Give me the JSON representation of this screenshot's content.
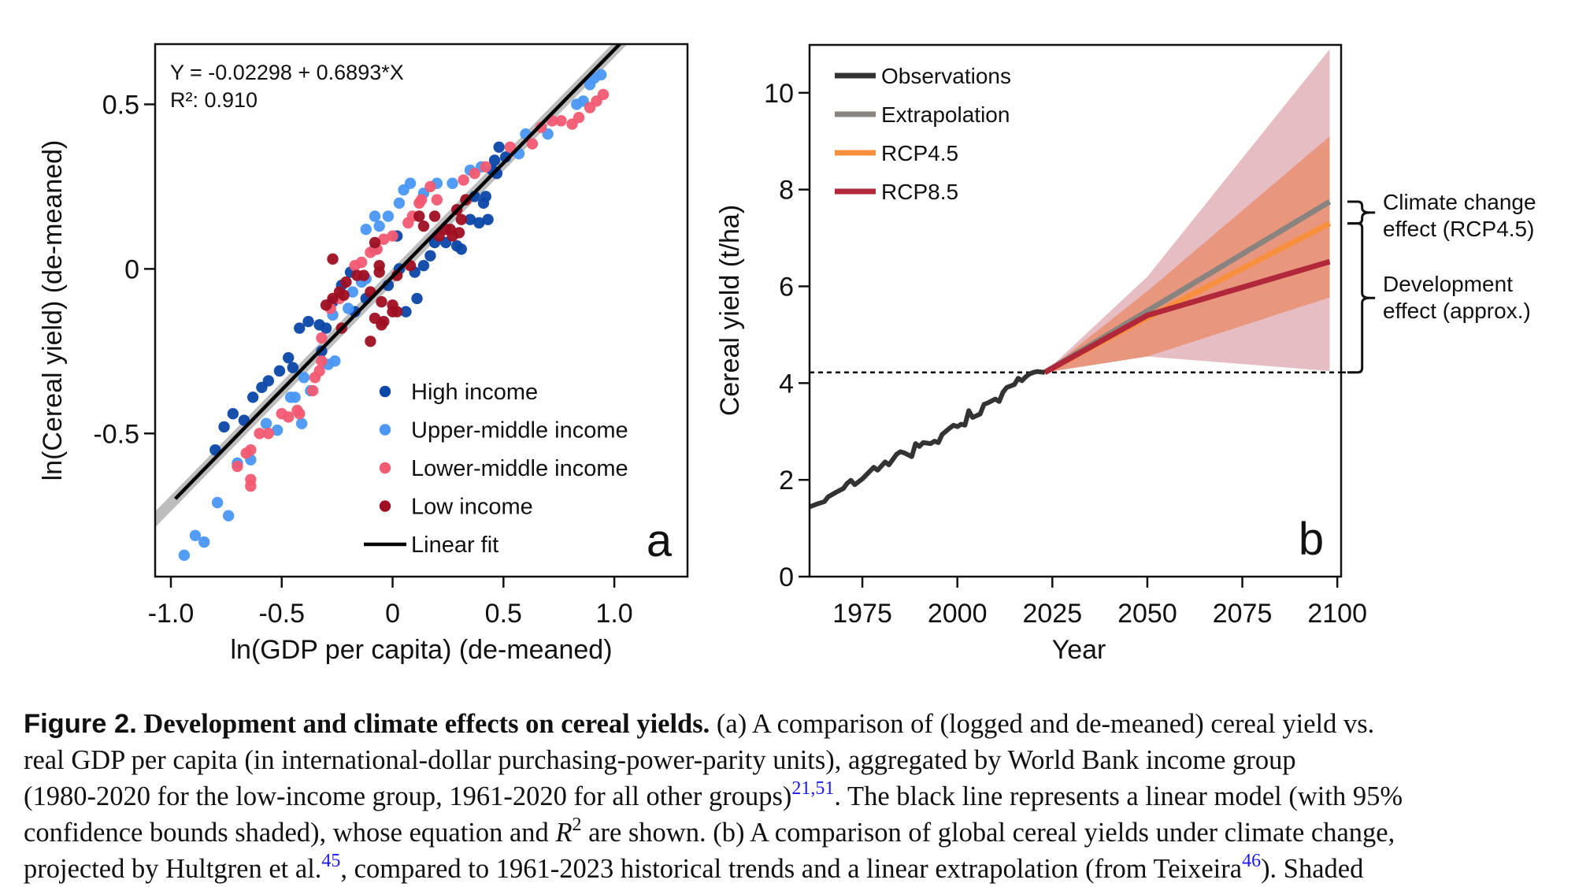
{
  "chart_data": [
    {
      "panel_label": "a",
      "type": "scatter",
      "xlabel": "ln(GDP per capita) (de-meaned)",
      "ylabel": "ln(Cereal yield) (de-meaned)",
      "xlim": [
        -1.071,
        1.33
      ],
      "ylim": [
        -0.935,
        0.683
      ],
      "xticks": [
        -1.0,
        -0.5,
        0,
        0.5,
        1.0
      ],
      "xtick_labels": [
        "-1.0",
        "-0.5",
        "0",
        "0.5",
        "1.0"
      ],
      "yticks": [
        -0.5,
        0,
        0.5
      ],
      "ytick_labels": [
        "-0.5",
        "0",
        "0.5"
      ],
      "grid": false,
      "annotation": {
        "equation": "Y = -0.02298 + 0.6893*X",
        "r2": "R²: 0.910"
      },
      "fit": {
        "name": "Linear fit",
        "intercept": -0.02298,
        "slope": 0.6893,
        "x_range": [
          -1.0,
          1.0
        ],
        "ci_half_width": 0.015,
        "color": "#000000"
      },
      "legend_position": "bottom-right",
      "series": [
        {
          "name": "High income",
          "color": "#0b47a8",
          "points": [
            [
              -0.8,
              -0.55
            ],
            [
              -0.76,
              -0.48
            ],
            [
              -0.72,
              -0.44
            ],
            [
              -0.67,
              -0.46
            ],
            [
              -0.63,
              -0.39
            ],
            [
              -0.59,
              -0.36
            ],
            [
              -0.56,
              -0.34
            ],
            [
              -0.51,
              -0.31
            ],
            [
              -0.47,
              -0.27
            ],
            [
              -0.45,
              -0.3
            ],
            [
              -0.42,
              -0.18
            ],
            [
              -0.38,
              -0.16
            ],
            [
              -0.33,
              -0.17
            ],
            [
              -0.32,
              -0.25
            ],
            [
              -0.3,
              -0.18
            ],
            [
              -0.27,
              -0.1
            ],
            [
              -0.23,
              -0.05
            ],
            [
              -0.19,
              -0.01
            ],
            [
              -0.17,
              -0.13
            ],
            [
              -0.12,
              -0.09
            ],
            [
              -0.08,
              0.06
            ],
            [
              -0.02,
              -0.05
            ],
            [
              0.02,
              0.1
            ],
            [
              0.03,
              0.0
            ],
            [
              0.06,
              -0.13
            ],
            [
              0.1,
              -0.01
            ],
            [
              0.11,
              -0.09
            ],
            [
              0.14,
              0.01
            ],
            [
              0.17,
              0.04
            ],
            [
              0.19,
              0.08
            ],
            [
              0.24,
              0.08
            ],
            [
              0.29,
              0.07
            ],
            [
              0.31,
              0.06
            ],
            [
              0.35,
              0.15
            ],
            [
              0.37,
              0.22
            ],
            [
              0.41,
              0.2
            ],
            [
              0.43,
              0.15
            ],
            [
              0.42,
              0.22
            ],
            [
              0.39,
              0.14
            ],
            [
              0.45,
              0.3
            ],
            [
              0.47,
              0.29
            ],
            [
              0.48,
              0.37
            ],
            [
              0.51,
              0.34
            ],
            [
              0.46,
              0.33
            ]
          ]
        },
        {
          "name": "Upper-middle income",
          "color": "#4a97f5",
          "points": [
            [
              -0.94,
              -0.87
            ],
            [
              -0.89,
              -0.81
            ],
            [
              -0.85,
              -0.83
            ],
            [
              -0.79,
              -0.71
            ],
            [
              -0.74,
              -0.75
            ],
            [
              -0.7,
              -0.59
            ],
            [
              -0.64,
              -0.58
            ],
            [
              -0.57,
              -0.47
            ],
            [
              -0.52,
              -0.49
            ],
            [
              -0.46,
              -0.39
            ],
            [
              -0.44,
              -0.39
            ],
            [
              -0.41,
              -0.47
            ],
            [
              -0.4,
              -0.33
            ],
            [
              -0.37,
              -0.37
            ],
            [
              -0.29,
              -0.29
            ],
            [
              -0.26,
              -0.28
            ],
            [
              -0.27,
              -0.14
            ],
            [
              -0.2,
              -0.12
            ],
            [
              -0.18,
              -0.07
            ],
            [
              -0.14,
              -0.04
            ],
            [
              -0.12,
              -0.03
            ],
            [
              -0.12,
              0.12
            ],
            [
              -0.08,
              0.16
            ],
            [
              -0.06,
              0.13
            ],
            [
              -0.02,
              0.16
            ],
            [
              0.03,
              0.2
            ],
            [
              0.05,
              0.24
            ],
            [
              0.08,
              0.26
            ],
            [
              0.14,
              0.23
            ],
            [
              0.2,
              0.26
            ],
            [
              0.27,
              0.26
            ],
            [
              0.35,
              0.3
            ],
            [
              0.4,
              0.31
            ],
            [
              0.57,
              0.35
            ],
            [
              0.6,
              0.41
            ],
            [
              0.7,
              0.41
            ],
            [
              0.83,
              0.5
            ],
            [
              0.86,
              0.51
            ],
            [
              0.89,
              0.56
            ],
            [
              0.91,
              0.58
            ],
            [
              0.94,
              0.59
            ]
          ]
        },
        {
          "name": "Lower-middle income",
          "color": "#f25a72",
          "points": [
            [
              -0.7,
              -0.6
            ],
            [
              -0.66,
              -0.56
            ],
            [
              -0.64,
              -0.55
            ],
            [
              -0.64,
              -0.64
            ],
            [
              -0.64,
              -0.66
            ],
            [
              -0.6,
              -0.5
            ],
            [
              -0.56,
              -0.5
            ],
            [
              -0.5,
              -0.44
            ],
            [
              -0.47,
              -0.45
            ],
            [
              -0.43,
              -0.43
            ],
            [
              -0.42,
              -0.44
            ],
            [
              -0.36,
              -0.37
            ],
            [
              -0.35,
              -0.33
            ],
            [
              -0.33,
              -0.31
            ],
            [
              -0.32,
              -0.28
            ],
            [
              -0.32,
              -0.21
            ],
            [
              -0.28,
              -0.12
            ],
            [
              -0.24,
              -0.09
            ],
            [
              -0.17,
              0.01
            ],
            [
              -0.14,
              0.02
            ],
            [
              -0.1,
              0.05
            ],
            [
              -0.07,
              0.06
            ],
            [
              -0.04,
              0.09
            ],
            [
              0.0,
              0.1
            ],
            [
              0.07,
              0.14
            ],
            [
              0.09,
              0.16
            ],
            [
              0.12,
              0.2
            ],
            [
              0.13,
              0.21
            ],
            [
              0.17,
              0.25
            ],
            [
              0.2,
              0.21
            ],
            [
              0.32,
              0.27
            ],
            [
              0.37,
              0.29
            ],
            [
              0.42,
              0.31
            ],
            [
              0.53,
              0.37
            ],
            [
              0.63,
              0.38
            ],
            [
              0.67,
              0.43
            ],
            [
              0.72,
              0.45
            ],
            [
              0.76,
              0.45
            ],
            [
              0.81,
              0.44
            ],
            [
              0.84,
              0.46
            ],
            [
              0.89,
              0.49
            ],
            [
              0.92,
              0.51
            ],
            [
              0.95,
              0.53
            ]
          ]
        },
        {
          "name": "Low income",
          "color": "#9e0f22",
          "points": [
            [
              -0.27,
              0.03
            ],
            [
              -0.3,
              -0.11
            ],
            [
              -0.27,
              -0.09
            ],
            [
              -0.24,
              -0.07
            ],
            [
              -0.22,
              -0.08
            ],
            [
              -0.21,
              -0.04
            ],
            [
              -0.23,
              -0.18
            ],
            [
              -0.16,
              -0.02
            ],
            [
              -0.13,
              -0.02
            ],
            [
              -0.1,
              -0.07
            ],
            [
              -0.08,
              0.08
            ],
            [
              -0.06,
              0.01
            ],
            [
              -0.06,
              -0.01
            ],
            [
              -0.05,
              -0.1
            ],
            [
              -0.08,
              -0.15
            ],
            [
              -0.04,
              -0.16
            ],
            [
              0.0,
              -0.11
            ],
            [
              0.0,
              -0.13
            ],
            [
              0.02,
              -0.13
            ],
            [
              -0.1,
              -0.22
            ],
            [
              -0.05,
              -0.17
            ],
            [
              0.02,
              -0.02
            ],
            [
              0.08,
              0.01
            ],
            [
              0.12,
              0.16
            ],
            [
              0.14,
              0.13
            ],
            [
              0.19,
              0.16
            ],
            [
              0.21,
              0.1
            ],
            [
              0.26,
              0.12
            ],
            [
              0.27,
              0.1
            ],
            [
              0.3,
              0.11
            ],
            [
              0.31,
              0.15
            ],
            [
              0.29,
              0.18
            ],
            [
              0.33,
              0.21
            ],
            [
              0.24,
              0.12
            ]
          ]
        }
      ]
    },
    {
      "panel_label": "b",
      "type": "line",
      "xlabel": "Year",
      "ylabel": "Cereal yield (t/ha)",
      "xlim": [
        1961.1,
        2101
      ],
      "ylim": [
        0,
        10.99
      ],
      "xticks": [
        1975,
        2000,
        2025,
        2050,
        2075,
        2100
      ],
      "xtick_labels": [
        "1975",
        "2000",
        "2025",
        "2050",
        "2075",
        "2100"
      ],
      "yticks": [
        0,
        2,
        4,
        6,
        8,
        10
      ],
      "ytick_labels": [
        "0",
        "2",
        "4",
        "6",
        "8",
        "10"
      ],
      "grid": false,
      "legend_position": "top-left",
      "reference_line": {
        "y": 4.22,
        "style": "dotted",
        "color": "#000000"
      },
      "bands": [
        {
          "name": "RCP8.5 range",
          "color": "#d99aa3",
          "opacity": 0.65,
          "x": [
            2023,
            2050,
            2098
          ],
          "lower": [
            4.22,
            4.55,
            4.25
          ],
          "upper": [
            4.22,
            6.2,
            10.9
          ]
        },
        {
          "name": "RCP4.5 range",
          "color": "#ea8a67",
          "opacity": 0.75,
          "x": [
            2023,
            2050,
            2098
          ],
          "lower": [
            4.22,
            4.55,
            5.77
          ],
          "upper": [
            4.22,
            5.9,
            9.1
          ]
        }
      ],
      "series": [
        {
          "name": "Observations",
          "color": "#333333",
          "x": [
            1961,
            1963,
            1965,
            1966,
            1968,
            1970,
            1971,
            1972,
            1973,
            1975,
            1976,
            1978,
            1979,
            1981,
            1982,
            1984,
            1985,
            1986,
            1988,
            1989,
            1990,
            1991,
            1993,
            1994,
            1995,
            1996,
            1998,
            1999,
            2000,
            2001,
            2002,
            2003,
            2004,
            2006,
            2007,
            2008,
            2010,
            2011,
            2012,
            2013,
            2015,
            2016,
            2017,
            2018,
            2019,
            2020,
            2021,
            2023
          ],
          "y": [
            1.44,
            1.5,
            1.55,
            1.65,
            1.74,
            1.82,
            1.93,
            1.99,
            1.9,
            2.02,
            2.1,
            2.26,
            2.2,
            2.37,
            2.31,
            2.53,
            2.58,
            2.56,
            2.48,
            2.75,
            2.69,
            2.77,
            2.75,
            2.8,
            2.77,
            2.94,
            3.07,
            3.13,
            3.1,
            3.15,
            3.13,
            3.43,
            3.29,
            3.36,
            3.56,
            3.59,
            3.67,
            3.62,
            3.81,
            3.91,
            3.97,
            4.1,
            4.05,
            4.13,
            4.19,
            4.22,
            4.24,
            4.22
          ]
        },
        {
          "name": "Extrapolation",
          "color": "#8a8480",
          "x": [
            2023,
            2098
          ],
          "y": [
            4.22,
            7.75
          ]
        },
        {
          "name": "RCP4.5",
          "color": "#f78f3c",
          "x": [
            2023,
            2050,
            2098
          ],
          "y": [
            4.22,
            5.35,
            7.3
          ]
        },
        {
          "name": "RCP8.5",
          "color": "#b0283a",
          "x": [
            2023,
            2050,
            2098
          ],
          "y": [
            4.22,
            5.4,
            6.51
          ]
        }
      ],
      "legend": [
        "Observations",
        "Extrapolation",
        "RCP4.5",
        "RCP8.5"
      ],
      "annotations": [
        {
          "label_line1": "Climate change",
          "label_line2": "effect (RCP4.5)",
          "from_y": 7.75,
          "to_y": 7.3
        },
        {
          "label_line1": "Development",
          "label_line2": "effect (approx.)",
          "from_y": 7.3,
          "to_y": 4.22
        }
      ]
    }
  ],
  "caption": {
    "figure_label": "Figure 2.",
    "title": "Development and climate effects on cereal yields.",
    "line1_rest": " (a) A comparison of (logged and de-meaned) cereal yield vs.",
    "line2": "real GDP per capita (in international-dollar purchasing-power-parity units), aggregated by World Bank income group",
    "line3_a": "(1980-2020 for the low-income group, 1961-2020 for all other groups)",
    "line3_ref": "21,51",
    "line3_b": ". The black line represents a linear model (with 95%",
    "line4_a": "confidence bounds shaded), whose equation and ",
    "line4_r": "R",
    "line4_sup": "2",
    "line4_b": " are shown. (b) A comparison of global cereal yields under climate change,",
    "line5_a": "projected by Hultgren et al.",
    "line5_ref1": "45",
    "line5_b": ", compared to 1961-2023 historical trends and a linear extrapolation (from Teixeira",
    "line5_ref2": "46",
    "line5_c": "). Shaded"
  }
}
